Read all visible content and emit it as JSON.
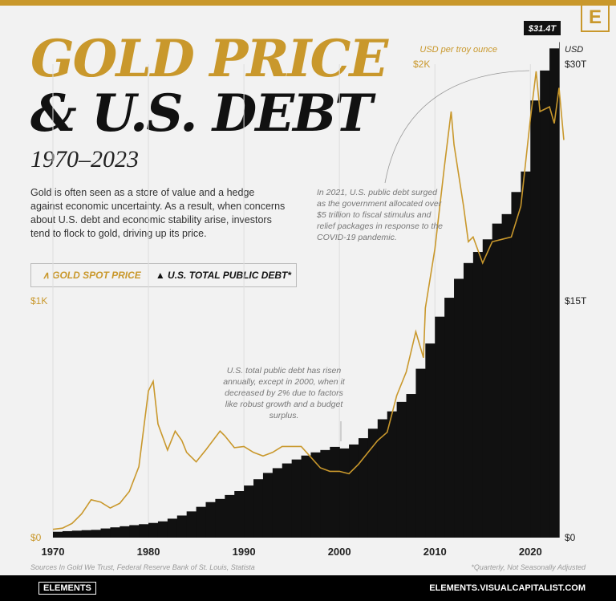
{
  "title": {
    "line1": "GOLD PRICE",
    "line2": "& U.S. DEBT",
    "years": "1970–2023"
  },
  "description": "Gold is often seen as a store of value and a hedge against economic uncertainty. As a result, when concerns about U.S. debt and economic stability arise, investors tend to flock to gold, driving up its price.",
  "legend": {
    "gold": "GOLD SPOT PRICE",
    "debt": "U.S. TOTAL PUBLIC DEBT*",
    "gold_icon": "caret-up-icon",
    "debt_icon": "triangle-icon"
  },
  "annotations": {
    "covid": "In 2021, U.S. public debt surged as the government allocated over $5 trillion to fiscal stimulus and relief packages in response to the COVID-19 pandemic.",
    "y2000": "U.S. total public debt has risen annually, except in 2000, when it decreased by 2% due to factors like robust growth and a budget surplus.",
    "callout": "$31.4T"
  },
  "sources": "Sources In Gold We Trust, Federal Reserve Bank of St. Louis, Statista",
  "footnote": "*Quarterly, Not Seasonally Adjusted",
  "footer": {
    "brand": "ELEMENTS",
    "url": "ELEMENTS.VISUALCAPITALIST.COM"
  },
  "colors": {
    "gold": "#c9982c",
    "debt": "#111111",
    "accent": "#c9982c"
  },
  "chart_data": {
    "type": "line+area",
    "x_ticks": [
      "1970",
      "1980",
      "1990",
      "2000",
      "2010",
      "2020"
    ],
    "xlim": [
      1970,
      2023
    ],
    "left_axis": {
      "label": "USD per troy ounce",
      "ticks": [
        "$0",
        "$1K",
        "$2K"
      ],
      "ylim": [
        0,
        2000
      ]
    },
    "right_axis": {
      "label": "USD",
      "ticks": [
        "$0",
        "$15T",
        "$30T"
      ],
      "ylim": [
        0,
        30
      ]
    },
    "series": [
      {
        "name": "GOLD SPOT PRICE",
        "type": "line",
        "axis": "left",
        "x": [
          1970,
          1971,
          1972,
          1973,
          1974,
          1975,
          1976,
          1977,
          1978,
          1979,
          1980,
          1980.5,
          1981,
          1982,
          1982.8,
          1983.5,
          1984,
          1985,
          1986,
          1987.5,
          1988,
          1989,
          1990,
          1991,
          1992,
          1993,
          1994,
          1995,
          1996,
          1997,
          1998,
          1999,
          2000,
          2001,
          2002,
          2003,
          2004,
          2005,
          2006,
          2007,
          2008,
          2008.8,
          2009,
          2010,
          2011,
          2011.7,
          2012,
          2013,
          2013.5,
          2014,
          2015,
          2016,
          2017,
          2018,
          2019,
          2020,
          2020.6,
          2021,
          2022,
          2022.5,
          2023,
          2023.5
        ],
        "values": [
          35,
          40,
          60,
          100,
          160,
          150,
          125,
          145,
          195,
          300,
          620,
          660,
          480,
          370,
          450,
          410,
          360,
          320,
          370,
          450,
          430,
          380,
          385,
          360,
          345,
          360,
          385,
          385,
          385,
          340,
          295,
          280,
          280,
          270,
          310,
          360,
          410,
          445,
          600,
          700,
          870,
          760,
          970,
          1220,
          1570,
          1800,
          1660,
          1400,
          1250,
          1270,
          1160,
          1250,
          1260,
          1270,
          1400,
          1770,
          1970,
          1800,
          1820,
          1750,
          1900,
          1680
        ]
      },
      {
        "name": "U.S. TOTAL PUBLIC DEBT*",
        "type": "step-area",
        "axis": "right",
        "x": [
          1970,
          1971,
          1972,
          1973,
          1974,
          1975,
          1976,
          1977,
          1978,
          1979,
          1980,
          1981,
          1982,
          1983,
          1984,
          1985,
          1986,
          1987,
          1988,
          1989,
          1990,
          1991,
          1992,
          1993,
          1994,
          1995,
          1996,
          1997,
          1998,
          1999,
          2000,
          2001,
          2002,
          2003,
          2004,
          2005,
          2006,
          2007,
          2008,
          2009,
          2010,
          2011,
          2012,
          2013,
          2014,
          2015,
          2016,
          2017,
          2018,
          2019,
          2020,
          2021,
          2022,
          2023
        ],
        "values": [
          0.37,
          0.41,
          0.44,
          0.47,
          0.49,
          0.58,
          0.65,
          0.72,
          0.79,
          0.85,
          0.93,
          1.03,
          1.2,
          1.4,
          1.66,
          1.95,
          2.25,
          2.45,
          2.7,
          2.95,
          3.3,
          3.7,
          4.1,
          4.4,
          4.7,
          4.95,
          5.2,
          5.4,
          5.55,
          5.75,
          5.65,
          5.9,
          6.3,
          6.9,
          7.5,
          8.0,
          8.6,
          9.1,
          10.7,
          12.3,
          14.0,
          15.2,
          16.4,
          17.4,
          18.1,
          18.9,
          19.9,
          20.5,
          21.9,
          23.2,
          27.7,
          29.6,
          31.0,
          31.4
        ]
      }
    ]
  }
}
